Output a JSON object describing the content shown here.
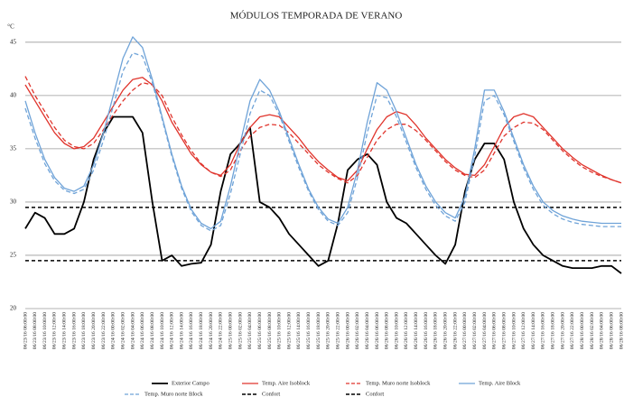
{
  "chart_data": {
    "type": "line",
    "title": "MÓDULOS TEMPORADA DE VERANO",
    "y_label": "°C",
    "ylim": [
      20,
      46
    ],
    "yticks": [
      20,
      25,
      30,
      35,
      40,
      45
    ],
    "grid": true,
    "legend": "bottom",
    "categories": [
      "06/23/16 06:00:00",
      "06/23/16 08:00:00",
      "06/23/16 10:00:00",
      "06/23/16 12:00:00",
      "06/23/16 14:00:00",
      "06/23/16 16:00:00",
      "06/23/16 18:00:00",
      "06/23/16 20:00:00",
      "06/23/16 22:00:00",
      "06/24/16 00:00:00",
      "06/24/16 02:00:00",
      "06/24/16 04:00:00",
      "06/24/16 06:00:00",
      "06/24/16 08:00:00",
      "06/24/16 10:00:00",
      "06/24/16 12:00:00",
      "06/24/16 14:00:00",
      "06/24/16 16:00:00",
      "06/24/16 18:00:00",
      "06/24/16 20:00:00",
      "06/24/16 22:00:00",
      "06/25/16 00:00:00",
      "06/25/16 02:00:00",
      "06/25/16 04:00:00",
      "06/25/16 06:00:00",
      "06/25/16 08:00:00",
      "06/25/16 10:00:00",
      "06/25/16 12:00:00",
      "06/25/16 14:00:00",
      "06/25/16 16:00:00",
      "06/25/16 18:00:00",
      "06/25/16 20:00:00",
      "06/25/16 22:00:00",
      "06/26/16 00:00:00",
      "06/26/16 02:00:00",
      "06/26/16 04:00:00",
      "06/26/16 06:00:00",
      "06/26/16 08:00:00",
      "06/26/16 10:00:00",
      "06/26/16 12:00:00",
      "06/26/16 14:00:00",
      "06/26/16 16:00:00",
      "06/26/16 18:00:00",
      "06/26/16 20:00:00",
      "06/26/16 22:00:00",
      "06/27/16 00:00:00",
      "06/27/16 02:00:00",
      "06/27/16 04:00:00",
      "06/27/16 06:00:00",
      "06/27/16 08:00:00",
      "06/27/16 10:00:00",
      "06/27/16 12:00:00",
      "06/27/16 14:00:00",
      "06/27/16 16:00:00",
      "06/27/16 18:00:00",
      "06/27/16 20:00:00",
      "06/27/16 22:00:00",
      "06/28/16 00:00:00",
      "06/28/16 02:00:00",
      "06/28/16 04:00:00",
      "06/28/16 06:00:00",
      "06/28/16 08:00:00"
    ],
    "series": [
      {
        "name": "Exterior Campo",
        "color": "#000000",
        "dash": false,
        "width": 1.8,
        "values": [
          27.5,
          29,
          28.5,
          27,
          27,
          27.5,
          30,
          34,
          36.5,
          38,
          38,
          38,
          36.5,
          30,
          24.5,
          25,
          24,
          24.2,
          24.3,
          26,
          31,
          34.5,
          35.5,
          37,
          30,
          29.5,
          28.5,
          27,
          26,
          25,
          24,
          24.5,
          28,
          33,
          34,
          34.5,
          33.5,
          30,
          28.5,
          28,
          27,
          26,
          25,
          24.2,
          26,
          31,
          34,
          35.5,
          35.5,
          34,
          30,
          27.5,
          26,
          25,
          24.5,
          24,
          23.8,
          23.8,
          23.8,
          24,
          24,
          23.3
        ]
      },
      {
        "name": "Temp. Aire Isoblock",
        "color": "#e0342c",
        "dash": false,
        "width": 1.3,
        "values": [
          41,
          39.5,
          38,
          36.5,
          35.5,
          35,
          35.2,
          36,
          37.5,
          39,
          40.5,
          41.5,
          41.7,
          41,
          39.5,
          37.5,
          36,
          34.5,
          33.5,
          32.8,
          32.5,
          33.5,
          35.5,
          37,
          38,
          38.2,
          38,
          37,
          36,
          34.8,
          33.8,
          33,
          32.3,
          32,
          33,
          35,
          36.8,
          38,
          38.5,
          38.2,
          37.2,
          36,
          35,
          34,
          33.2,
          32.6,
          32.5,
          33.5,
          35.2,
          37,
          38,
          38.3,
          38,
          37,
          36,
          35,
          34.2,
          33.5,
          33,
          32.5,
          32.1,
          31.8
        ]
      },
      {
        "name": "Temp. Muro norte Isoblock",
        "color": "#e0342c",
        "dash": true,
        "width": 1.3,
        "values": [
          41.8,
          40,
          38.5,
          37,
          35.8,
          35.2,
          35,
          35.5,
          36.8,
          38.2,
          39.5,
          40.5,
          41.2,
          41,
          40,
          38,
          36.3,
          34.8,
          33.6,
          32.8,
          32.4,
          33,
          34.8,
          36.2,
          37,
          37.3,
          37.2,
          36.5,
          35.5,
          34.5,
          33.5,
          32.8,
          32.2,
          31.8,
          32.5,
          34.2,
          35.8,
          36.8,
          37.3,
          37.3,
          36.7,
          35.8,
          34.8,
          33.8,
          33,
          32.5,
          32.3,
          33,
          34.6,
          36.2,
          37,
          37.5,
          37.4,
          36.8,
          35.8,
          34.8,
          34,
          33.3,
          32.8,
          32.4,
          32.1,
          31.8
        ]
      },
      {
        "name": "Temp. Aire Block",
        "color": "#6fa3d8",
        "dash": false,
        "width": 1.3,
        "values": [
          39.5,
          36.5,
          34,
          32.3,
          31.3,
          31,
          31.5,
          33.5,
          36.5,
          40,
          43.5,
          45.5,
          44.5,
          41.5,
          38,
          34.5,
          31.5,
          29.3,
          28,
          27.5,
          28.2,
          31.5,
          35.5,
          39.5,
          41.5,
          40.5,
          38.5,
          36,
          33.5,
          31.2,
          29.5,
          28.4,
          28,
          29.5,
          33,
          37.5,
          41.2,
          40.5,
          38.5,
          36,
          33.5,
          31.5,
          30,
          29,
          28.5,
          30.5,
          35,
          40.5,
          40.5,
          38.5,
          36,
          33.5,
          31.5,
          30,
          29.2,
          28.7,
          28.4,
          28.2,
          28.1,
          28,
          28,
          28
        ]
      },
      {
        "name": "Temp. Muro norte Block",
        "color": "#6fa3d8",
        "dash": true,
        "width": 1.3,
        "values": [
          38.8,
          36,
          33.6,
          32,
          31.1,
          30.8,
          31.2,
          33,
          35.8,
          39,
          42.3,
          44,
          43.7,
          41.2,
          37.8,
          34.3,
          31.3,
          29.1,
          27.8,
          27.3,
          27.8,
          30.8,
          34.5,
          38.3,
          40.5,
          40,
          38.2,
          35.7,
          33.2,
          31,
          29.3,
          28.2,
          27.8,
          29,
          32.3,
          36.5,
          40,
          39.8,
          38,
          35.6,
          33.2,
          31.2,
          29.7,
          28.7,
          28.2,
          30,
          34.3,
          39.5,
          40,
          38.2,
          35.7,
          33.2,
          31.2,
          29.7,
          28.9,
          28.4,
          28.1,
          27.9,
          27.8,
          27.7,
          27.7,
          27.7
        ]
      }
    ],
    "reference_lines": [
      {
        "name": "Confort",
        "value": 29.5,
        "color": "#000000"
      },
      {
        "name": "Confort",
        "value": 24.5,
        "color": "#000000"
      }
    ]
  }
}
